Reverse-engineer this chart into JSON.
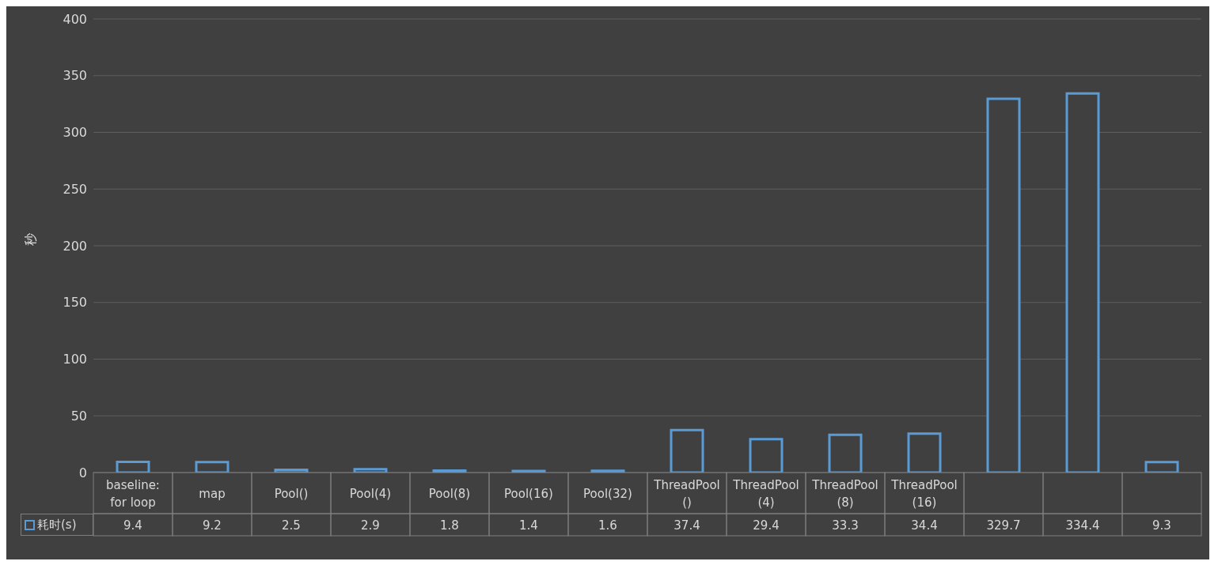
{
  "chart_data": {
    "type": "bar",
    "ylabel": "秒",
    "categories": [
      "baseline: for loop",
      "map",
      "Pool()",
      "Pool(4)",
      "Pool(8)",
      "Pool(16)",
      "Pool(32)",
      "ThreadPool()",
      "ThreadPool(4)",
      "ThreadPool(8)",
      "ThreadPool(16)",
      null,
      null,
      null
    ],
    "series": [
      {
        "name": "耗时(s)",
        "color": "#5b9bd5",
        "values": [
          9.4,
          9.2,
          2.5,
          2.9,
          1.8,
          1.4,
          1.6,
          37.4,
          29.4,
          33.3,
          34.4,
          329.7,
          334.4,
          9.3
        ]
      }
    ],
    "ylim": [
      0,
      400
    ],
    "yticks": [
      0,
      50,
      100,
      150,
      200,
      250,
      300,
      350,
      400
    ],
    "grid": "y",
    "legend": "bottom left",
    "data_labels": true
  }
}
